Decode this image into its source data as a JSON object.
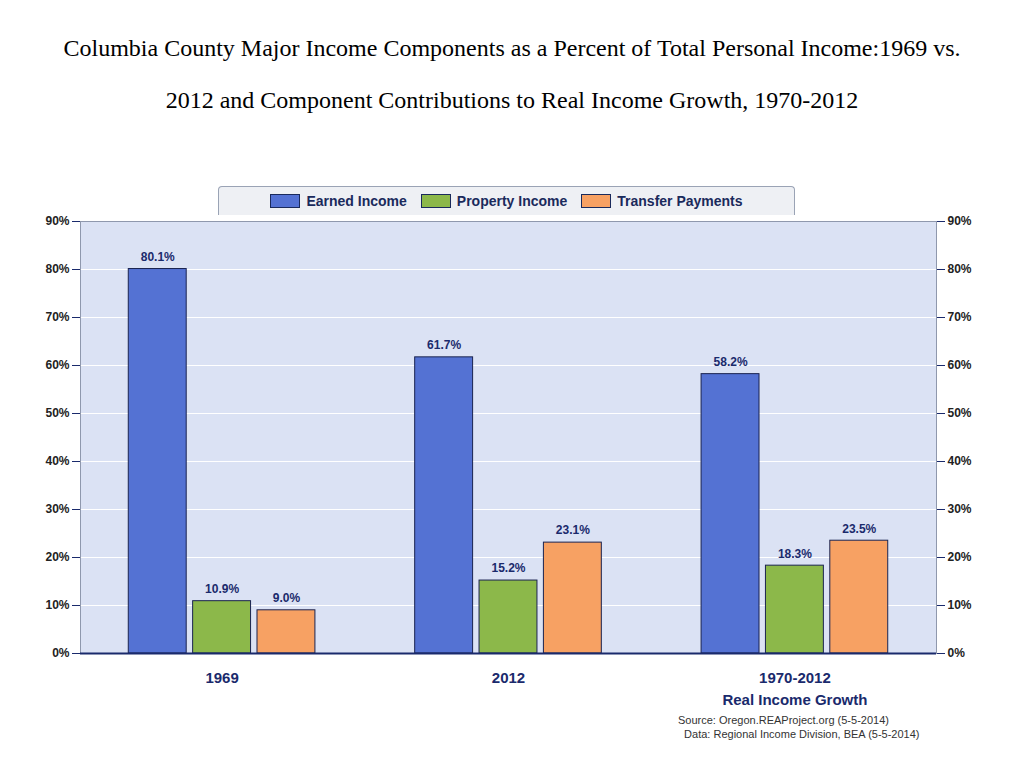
{
  "chart_data": {
    "type": "bar",
    "title": "Columbia County Major Income Components as a Percent of Total Personal Income:1969 vs. 2012 and Component Contributions to Real Income Growth, 1970-2012",
    "categories": [
      "1969",
      "2012",
      "1970-2012"
    ],
    "annotations": [
      {
        "text": "Real Income Growth",
        "category": "1970-2012"
      }
    ],
    "series": [
      {
        "name": "Earned Income",
        "color": "#5472d3",
        "values": [
          80.1,
          61.7,
          58.2
        ],
        "value_labels": [
          "80.1%",
          "61.7%",
          "58.2%"
        ]
      },
      {
        "name": "Property Income",
        "color": "#8cb84a",
        "values": [
          10.9,
          15.2,
          18.3
        ],
        "value_labels": [
          "10.9%",
          "15.2%",
          "18.3%"
        ]
      },
      {
        "name": "Transfer Payments",
        "color": "#f7a163",
        "values": [
          9.0,
          23.1,
          23.5
        ],
        "value_labels": [
          "9.0%",
          "23.1%",
          "23.5%"
        ]
      }
    ],
    "ylim": [
      0,
      90
    ],
    "yticks": [
      {
        "value": 0,
        "label": "0%"
      },
      {
        "value": 10,
        "label": "10%"
      },
      {
        "value": 20,
        "label": "20%"
      },
      {
        "value": 30,
        "label": "30%"
      },
      {
        "value": 40,
        "label": "40%"
      },
      {
        "value": 50,
        "label": "50%"
      },
      {
        "value": 60,
        "label": "60%"
      },
      {
        "value": 70,
        "label": "70%"
      },
      {
        "value": 80,
        "label": "80%"
      },
      {
        "value": 90,
        "label": "90%"
      }
    ],
    "y2lim": [
      0,
      90
    ],
    "y2ticks": [
      {
        "value": 0,
        "label": "0%"
      },
      {
        "value": 10,
        "label": "10%"
      },
      {
        "value": 20,
        "label": "20%"
      },
      {
        "value": 30,
        "label": "30%"
      },
      {
        "value": 40,
        "label": "40%"
      },
      {
        "value": 50,
        "label": "50%"
      },
      {
        "value": 60,
        "label": "60%"
      },
      {
        "value": 70,
        "label": "70%"
      },
      {
        "value": 80,
        "label": "80%"
      },
      {
        "value": 90,
        "label": "90%"
      }
    ],
    "grid": true,
    "legend": "top",
    "data_labels": true,
    "source": "Source: Oregon.REAProject.org (5-5-2014)",
    "note": "Data: Regional Income Division, BEA (5-5-2014)"
  }
}
